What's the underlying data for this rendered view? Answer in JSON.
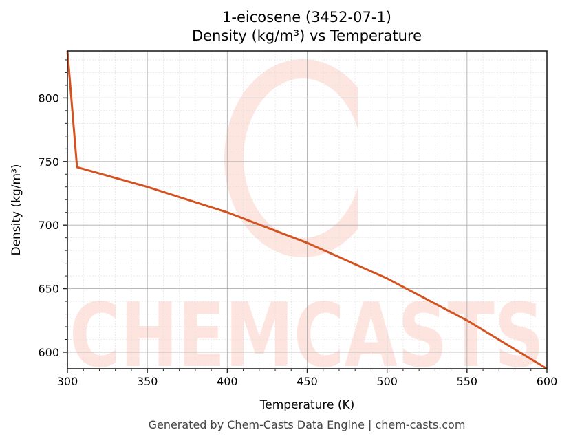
{
  "chart": {
    "title_line1": "1-eicosene (3452-07-1)",
    "title_line2": "Density (kg/m³) vs Temperature",
    "xlabel": "Temperature (K)",
    "ylabel": "Density (kg/m³)",
    "footer": "Generated by Chem-Casts Data Engine | chem-casts.com",
    "watermark": "CHEMCASTS",
    "line_color": "#d4521f",
    "x_ticks": [
      "300",
      "350",
      "400",
      "450",
      "500",
      "550",
      "600"
    ],
    "y_ticks": [
      "600",
      "650",
      "700",
      "750",
      "800"
    ]
  },
  "chart_data": {
    "type": "line",
    "title": "1-eicosene (3452-07-1) Density (kg/m³) vs Temperature",
    "xlabel": "Temperature (K)",
    "ylabel": "Density (kg/m³)",
    "xlim": [
      300,
      600
    ],
    "ylim": [
      587,
      837
    ],
    "grid": true,
    "legend": null,
    "series": [
      {
        "name": "Density",
        "x": [
          300,
          306,
          350,
          400,
          450,
          500,
          550,
          600
        ],
        "y": [
          837,
          745.5,
          730,
          710,
          686,
          658,
          625,
          587
        ]
      }
    ],
    "x_ticks": [
      300,
      350,
      400,
      450,
      500,
      550,
      600
    ],
    "y_ticks": [
      600,
      650,
      700,
      750,
      800
    ]
  }
}
